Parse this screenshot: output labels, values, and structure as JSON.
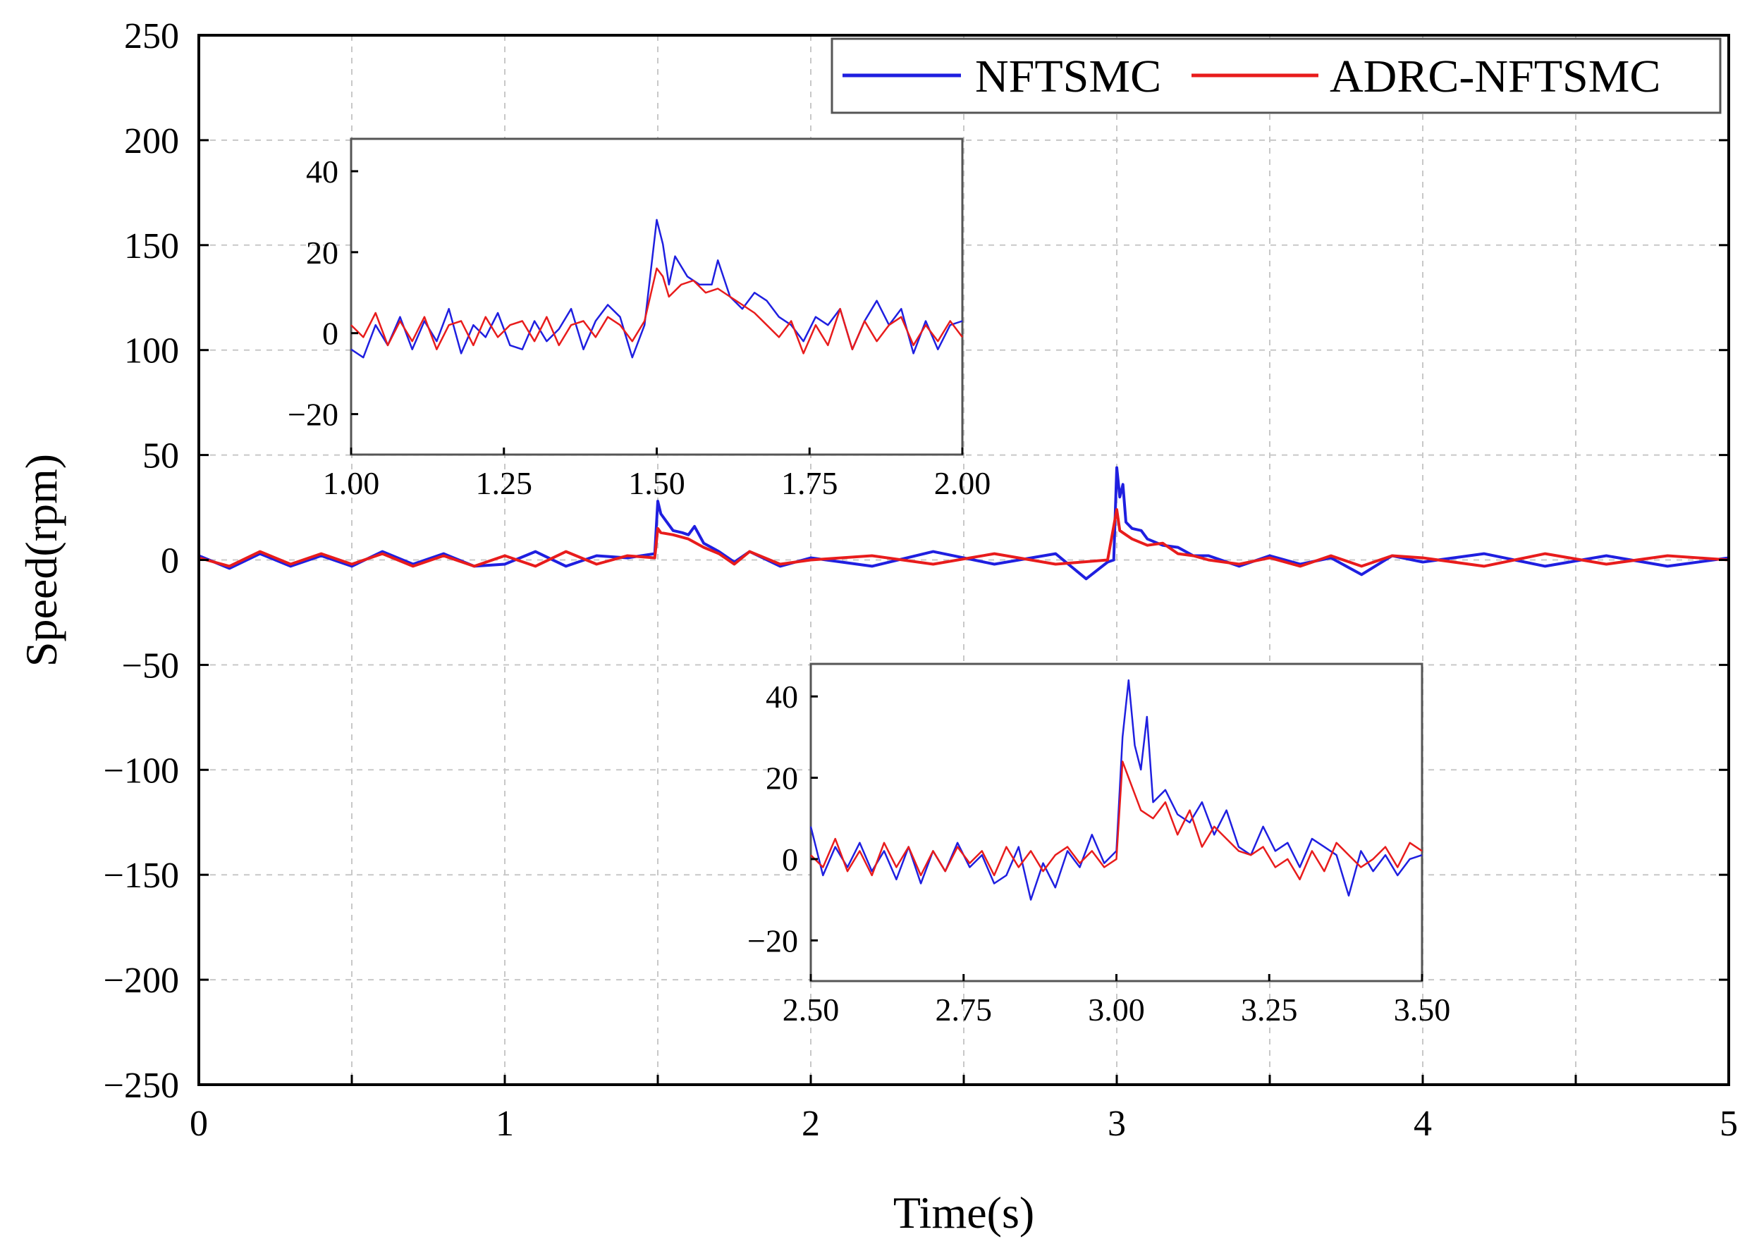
{
  "chart_data": [
    {
      "type": "line",
      "role": "main",
      "xlabel": "Time(s)",
      "ylabel": "Speed(rpm)",
      "xlim": [
        0,
        5
      ],
      "ylim": [
        -250,
        250
      ],
      "xticks": [
        0,
        1,
        2,
        3,
        4,
        5
      ],
      "xtick_labels": [
        "0",
        "1",
        "2",
        "3",
        "4",
        "5"
      ],
      "yticks": [
        250,
        200,
        150,
        100,
        50,
        0,
        -50,
        -100,
        -150,
        -200,
        -250
      ],
      "ytick_labels": [
        "250",
        "200",
        "150",
        "100",
        "50",
        "0",
        "−50",
        "−100",
        "−150",
        "−200",
        "−250"
      ],
      "grid": true,
      "legend_position": "top-right",
      "series": [
        {
          "name": "NFTSMC",
          "color": "#1f1fe0",
          "x": [
            0,
            0.1,
            0.2,
            0.3,
            0.4,
            0.5,
            0.6,
            0.7,
            0.8,
            0.9,
            1.0,
            1.1,
            1.2,
            1.3,
            1.4,
            1.49,
            1.5,
            1.51,
            1.53,
            1.55,
            1.58,
            1.6,
            1.62,
            1.65,
            1.7,
            1.75,
            1.8,
            1.9,
            2.0,
            2.2,
            2.4,
            2.6,
            2.8,
            2.9,
            2.97,
            2.99,
            3.0,
            3.01,
            3.02,
            3.03,
            3.05,
            3.08,
            3.1,
            3.15,
            3.2,
            3.25,
            3.3,
            3.4,
            3.5,
            3.6,
            3.7,
            3.8,
            3.9,
            4.0,
            4.2,
            4.4,
            4.6,
            4.8,
            5.0
          ],
          "y": [
            2,
            -4,
            3,
            -3,
            2,
            -3,
            4,
            -2,
            3,
            -3,
            -2,
            4,
            -3,
            2,
            1,
            3,
            28,
            22,
            18,
            14,
            13,
            12,
            16,
            8,
            4,
            -1,
            4,
            -3,
            1,
            -3,
            4,
            -2,
            3,
            -9,
            -1,
            0,
            44,
            30,
            36,
            18,
            15,
            14,
            10,
            7,
            6,
            2,
            2,
            -3,
            2,
            -2,
            1,
            -7,
            2,
            -1,
            3,
            -3,
            2,
            -3,
            1
          ]
        },
        {
          "name": "ADRC-NFTSMC",
          "color": "#e81c1c",
          "x": [
            0,
            0.1,
            0.2,
            0.3,
            0.4,
            0.5,
            0.6,
            0.7,
            0.8,
            0.9,
            1.0,
            1.1,
            1.2,
            1.3,
            1.4,
            1.49,
            1.5,
            1.51,
            1.55,
            1.6,
            1.65,
            1.7,
            1.75,
            1.8,
            1.9,
            2.0,
            2.2,
            2.4,
            2.6,
            2.8,
            2.97,
            3.0,
            3.01,
            3.03,
            3.05,
            3.1,
            3.15,
            3.2,
            3.25,
            3.3,
            3.4,
            3.5,
            3.6,
            3.7,
            3.8,
            3.9,
            4.0,
            4.2,
            4.4,
            4.6,
            4.8,
            5.0
          ],
          "y": [
            1,
            -3,
            4,
            -2,
            3,
            -2,
            3,
            -3,
            2,
            -3,
            2,
            -3,
            4,
            -2,
            2,
            1,
            15,
            13,
            12,
            10,
            6,
            3,
            -2,
            4,
            -2,
            0,
            2,
            -2,
            3,
            -2,
            0,
            24,
            14,
            12,
            10,
            7,
            8,
            3,
            2,
            0,
            -2,
            1,
            -3,
            2,
            -3,
            2,
            1,
            -3,
            3,
            -2,
            2,
            0
          ]
        }
      ]
    },
    {
      "type": "line",
      "role": "inset",
      "xlim": [
        1.0,
        2.0
      ],
      "ylim": [
        -30,
        48
      ],
      "xticks": [
        1.0,
        1.25,
        1.5,
        1.75,
        2.0
      ],
      "xtick_labels": [
        "1.00",
        "1.25",
        "1.50",
        "1.75",
        "2.00"
      ],
      "yticks": [
        40,
        20,
        0,
        -20
      ],
      "ytick_labels": [
        "40",
        "20",
        "0",
        "−20"
      ],
      "series": [
        {
          "name": "NFTSMC",
          "x": [
            1.0,
            1.02,
            1.04,
            1.06,
            1.08,
            1.1,
            1.12,
            1.14,
            1.16,
            1.18,
            1.2,
            1.22,
            1.24,
            1.26,
            1.28,
            1.3,
            1.32,
            1.34,
            1.36,
            1.38,
            1.4,
            1.42,
            1.44,
            1.46,
            1.48,
            1.5,
            1.51,
            1.52,
            1.53,
            1.55,
            1.57,
            1.59,
            1.6,
            1.62,
            1.64,
            1.66,
            1.68,
            1.7,
            1.72,
            1.74,
            1.76,
            1.78,
            1.8,
            1.82,
            1.84,
            1.86,
            1.88,
            1.9,
            1.92,
            1.94,
            1.96,
            1.98,
            2.0
          ],
          "y": [
            -4,
            -6,
            2,
            -3,
            4,
            -4,
            3,
            -2,
            6,
            -5,
            2,
            -1,
            5,
            -3,
            -4,
            3,
            -2,
            1,
            6,
            -4,
            3,
            7,
            4,
            -6,
            2,
            28,
            22,
            12,
            19,
            14,
            12,
            12,
            18,
            9,
            6,
            10,
            8,
            4,
            2,
            -2,
            4,
            2,
            6,
            -4,
            3,
            8,
            2,
            6,
            -5,
            3,
            -4,
            2,
            3
          ]
        },
        {
          "name": "ADRC-NFTSMC",
          "x": [
            1.0,
            1.02,
            1.04,
            1.06,
            1.08,
            1.1,
            1.12,
            1.14,
            1.16,
            1.18,
            1.2,
            1.22,
            1.24,
            1.26,
            1.28,
            1.3,
            1.32,
            1.34,
            1.36,
            1.38,
            1.4,
            1.42,
            1.44,
            1.46,
            1.48,
            1.5,
            1.51,
            1.52,
            1.54,
            1.56,
            1.58,
            1.6,
            1.62,
            1.64,
            1.66,
            1.68,
            1.7,
            1.72,
            1.74,
            1.76,
            1.78,
            1.8,
            1.82,
            1.84,
            1.86,
            1.88,
            1.9,
            1.92,
            1.94,
            1.96,
            1.98,
            2.0
          ],
          "y": [
            2,
            -1,
            5,
            -3,
            3,
            -2,
            4,
            -4,
            2,
            3,
            -3,
            4,
            -1,
            2,
            3,
            -2,
            4,
            -3,
            2,
            3,
            -1,
            4,
            2,
            -2,
            3,
            16,
            14,
            9,
            12,
            13,
            10,
            11,
            9,
            7,
            5,
            2,
            -1,
            3,
            -5,
            2,
            -3,
            6,
            -4,
            3,
            -2,
            2,
            4,
            -3,
            2,
            -2,
            3,
            -1
          ]
        }
      ]
    },
    {
      "type": "line",
      "role": "inset",
      "xlim": [
        2.5,
        3.5
      ],
      "ylim": [
        -30,
        48
      ],
      "xticks": [
        2.5,
        2.75,
        3.0,
        3.25,
        3.5
      ],
      "xtick_labels": [
        "2.50",
        "2.75",
        "3.00",
        "3.25",
        "3.50"
      ],
      "yticks": [
        40,
        20,
        0,
        -20
      ],
      "ytick_labels": [
        "40",
        "20",
        "0",
        "−20"
      ],
      "series": [
        {
          "name": "NFTSMC",
          "x": [
            2.5,
            2.52,
            2.54,
            2.56,
            2.58,
            2.6,
            2.62,
            2.64,
            2.66,
            2.68,
            2.7,
            2.72,
            2.74,
            2.76,
            2.78,
            2.8,
            2.82,
            2.84,
            2.86,
            2.88,
            2.9,
            2.92,
            2.94,
            2.96,
            2.98,
            3.0,
            3.01,
            3.02,
            3.03,
            3.04,
            3.05,
            3.06,
            3.08,
            3.1,
            3.12,
            3.14,
            3.16,
            3.18,
            3.2,
            3.22,
            3.24,
            3.26,
            3.28,
            3.3,
            3.32,
            3.34,
            3.36,
            3.38,
            3.4,
            3.42,
            3.44,
            3.46,
            3.48,
            3.5
          ],
          "y": [
            8,
            -4,
            3,
            -2,
            4,
            -3,
            2,
            -5,
            3,
            -6,
            2,
            -3,
            4,
            -2,
            1,
            -6,
            -4,
            3,
            -10,
            -1,
            -7,
            2,
            -2,
            6,
            -1,
            2,
            30,
            44,
            28,
            22,
            35,
            14,
            17,
            11,
            9,
            14,
            6,
            12,
            3,
            1,
            8,
            2,
            4,
            -2,
            5,
            3,
            1,
            -9,
            2,
            -3,
            1,
            -4,
            0,
            1
          ]
        },
        {
          "name": "ADRC-NFTSMC",
          "x": [
            2.5,
            2.52,
            2.54,
            2.56,
            2.58,
            2.6,
            2.62,
            2.64,
            2.66,
            2.68,
            2.7,
            2.72,
            2.74,
            2.76,
            2.78,
            2.8,
            2.82,
            2.84,
            2.86,
            2.88,
            2.9,
            2.92,
            2.94,
            2.96,
            2.98,
            3.0,
            3.01,
            3.02,
            3.04,
            3.06,
            3.08,
            3.1,
            3.12,
            3.14,
            3.16,
            3.18,
            3.2,
            3.22,
            3.24,
            3.26,
            3.28,
            3.3,
            3.32,
            3.34,
            3.36,
            3.38,
            3.4,
            3.42,
            3.44,
            3.46,
            3.48,
            3.5
          ],
          "y": [
            1,
            -2,
            5,
            -3,
            2,
            -4,
            4,
            -2,
            3,
            -4,
            2,
            -3,
            3,
            -1,
            2,
            -4,
            3,
            -2,
            2,
            -3,
            1,
            3,
            -1,
            2,
            -2,
            0,
            24,
            20,
            12,
            10,
            14,
            6,
            12,
            3,
            8,
            5,
            2,
            1,
            3,
            -2,
            0,
            -5,
            2,
            -3,
            4,
            1,
            -2,
            0,
            3,
            -2,
            4,
            2
          ]
        }
      ]
    }
  ]
}
